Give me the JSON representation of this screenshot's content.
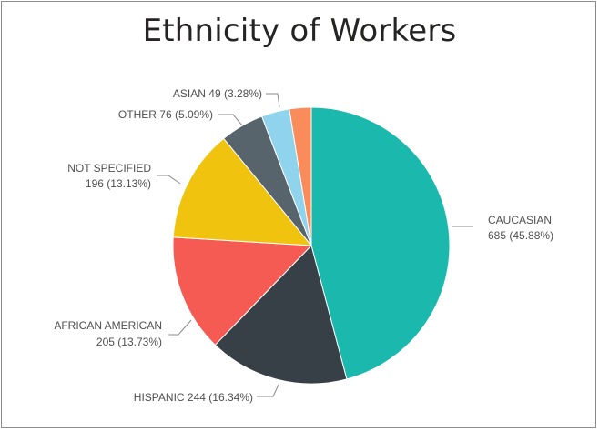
{
  "chart_data": {
    "type": "pie",
    "title": "Ethnicity of Workers",
    "slices": [
      {
        "label": "CAUCASIAN",
        "value": 685,
        "percent_label": "(45.88%)",
        "color": "#1ab8ad"
      },
      {
        "label": "HISPANIC",
        "value": 244,
        "percent_label": "(16.34%)",
        "color": "#374046"
      },
      {
        "label": "AFRICAN AMERICAN",
        "value": 205,
        "percent_label": "(13.73%)",
        "color": "#f55a53"
      },
      {
        "label": "NOT SPECIFIED",
        "value": 196,
        "percent_label": "(13.13%)",
        "color": "#f0c30f"
      },
      {
        "label": "OTHER",
        "value": 76,
        "percent_label": "(5.09%)",
        "color": "#57646b"
      },
      {
        "label": "ASIAN",
        "value": 49,
        "percent_label": "(3.28%)",
        "color": "#8fd4ec"
      },
      {
        "label": "",
        "value": 38,
        "percent_label": "",
        "color": "#f98c5a"
      }
    ],
    "start_angle_deg": 0,
    "direction": "clockwise"
  }
}
